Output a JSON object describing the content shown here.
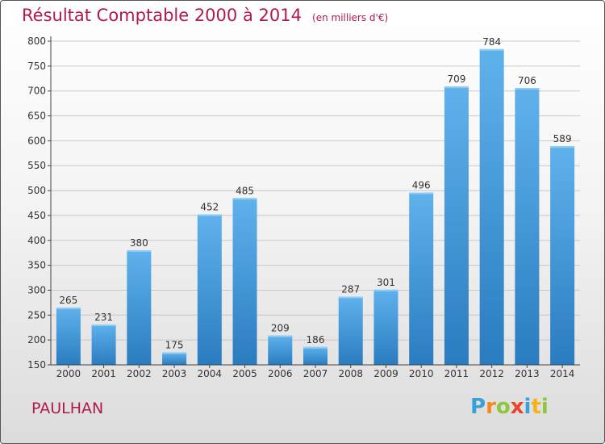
{
  "title": "Résultat Comptable 2000 à 2014",
  "subtitle": "(en milliers d'€)",
  "footer_label": "PAULHAN",
  "logo": {
    "letters": [
      "P",
      "r",
      "o",
      "x",
      "i",
      "t",
      "i"
    ],
    "colors": [
      "#3aa0d8",
      "#f08a1c",
      "#8cc63f",
      "#e8452c",
      "#3aa0d8",
      "#f6b21a",
      "#8cc63f"
    ]
  },
  "chart_data": {
    "type": "bar",
    "categories": [
      "2000",
      "2001",
      "2002",
      "2003",
      "2004",
      "2005",
      "2006",
      "2007",
      "2008",
      "2009",
      "2010",
      "2011",
      "2012",
      "2013",
      "2014"
    ],
    "values": [
      265,
      231,
      380,
      175,
      452,
      485,
      209,
      186,
      287,
      301,
      496,
      709,
      784,
      706,
      589
    ],
    "yticks": [
      150,
      200,
      250,
      300,
      350,
      400,
      450,
      500,
      550,
      600,
      650,
      700,
      750,
      800
    ],
    "ylim": [
      150,
      800
    ],
    "grid": true,
    "bar_color": "#3a8fd6"
  }
}
